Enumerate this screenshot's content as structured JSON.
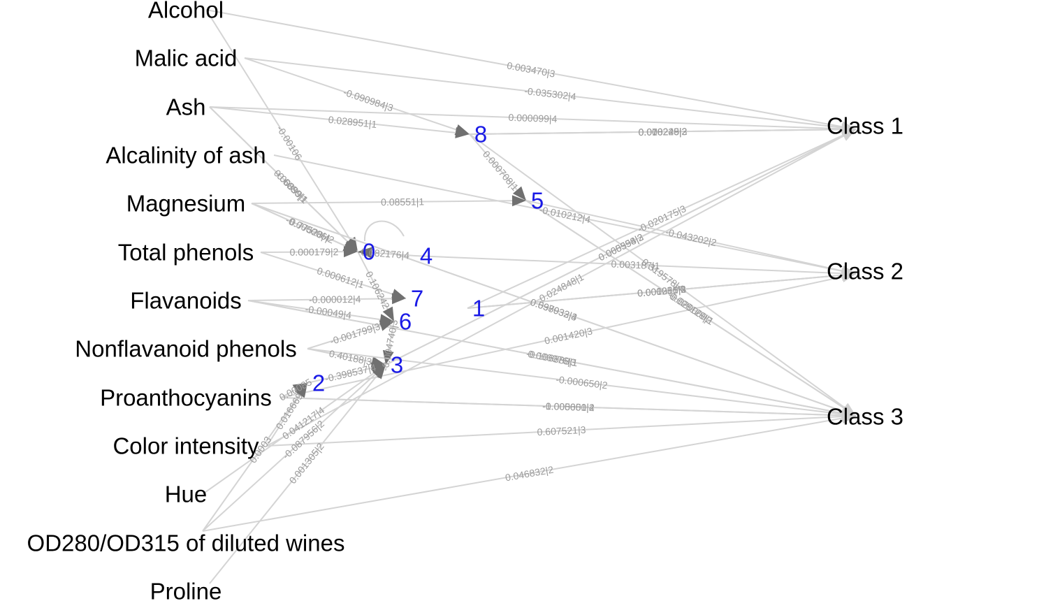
{
  "colors": {
    "hidden_node": "#1a1ae6",
    "edge": "#d4d4d4",
    "edge_label": "#9a9a9a",
    "text": "#000000"
  },
  "features": [
    "Alcohol",
    "Malic acid",
    "Ash",
    "Alcalinity of ash",
    "Magnesium",
    "Total phenols",
    "Flavanoids",
    "Nonflavanoid phenols",
    "Proanthocyanins",
    "Color intensity",
    "Hue",
    "OD280/OD315 of diluted wines",
    "Proline"
  ],
  "hidden_nodes": [
    "0",
    "1",
    "2",
    "3",
    "4",
    "5",
    "6",
    "7",
    "8"
  ],
  "classes": [
    "Class 1",
    "Class 2",
    "Class 3"
  ],
  "edges": [
    {
      "from": "Alcohol",
      "to": "Class 1",
      "label": "0.003470|3"
    },
    {
      "from": "Malic acid",
      "to": "Class 1",
      "label": "-0.035302|4"
    },
    {
      "from": "Malic acid",
      "to": "8",
      "label": "-0.090984|3"
    },
    {
      "from": "Ash",
      "to": "Class 1",
      "label": "0.000099|4"
    },
    {
      "from": "Alcohol",
      "to": "0",
      "label": "-0.00106"
    },
    {
      "from": "Ash",
      "to": "8",
      "label": "0.028951|1"
    },
    {
      "from": "8",
      "to": "Class 1",
      "label": "0.070245|2"
    },
    {
      "from": "8",
      "to": "Class 1",
      "label": "0.000249|3"
    },
    {
      "from": "Alcalinity of ash",
      "to": "Class 2",
      "label": "-0.010212|4"
    },
    {
      "from": "Ash",
      "to": "0",
      "label": "-0.6080|1"
    },
    {
      "from": "Ash",
      "to": "0",
      "label": "0.00899|1"
    },
    {
      "from": "8",
      "to": "Class 1",
      "label": "0.018228|2"
    },
    {
      "from": "8",
      "to": "5",
      "label": "0.000708|1"
    },
    {
      "from": "5",
      "to": "Class 2",
      "label": "-0.043202|2"
    },
    {
      "from": "Magnesium",
      "to": "0",
      "label": "0.77528|4"
    },
    {
      "from": "Magnesium",
      "to": "0",
      "label": "-0.000006|2"
    },
    {
      "from": "Magnesium",
      "to": "5",
      "label": "0.08551|1"
    },
    {
      "from": "5",
      "to": "Class 3",
      "label": "-0.020000|1"
    },
    {
      "from": "5",
      "to": "Class 3",
      "label": "0.028129|2"
    },
    {
      "from": "Magnesium",
      "to": "Class 3",
      "label": "0.037032|3"
    },
    {
      "from": "Total phenols",
      "to": "0",
      "label": "0.000179|2"
    },
    {
      "from": "3",
      "to": "Class 1",
      "label": "0.060394|2"
    },
    {
      "from": "4",
      "to": "0",
      "label": "-0.082176|4"
    },
    {
      "from": "Magnesium",
      "to": "Class 3",
      "label": "0.598933|4"
    },
    {
      "from": "8",
      "to": "Class 3",
      "label": "0.319578|4"
    },
    {
      "from": "4",
      "to": "Class 2",
      "label": "0.003187|1"
    },
    {
      "from": "Total phenols",
      "to": "7",
      "label": "0.000612|1"
    },
    {
      "from": "Flavanoids",
      "to": "7",
      "label": "-0.000012|4"
    },
    {
      "from": "1",
      "to": "Class 2",
      "label": "0.000280|3"
    },
    {
      "from": "1",
      "to": "Class 2",
      "label": "0.000015|4"
    },
    {
      "from": "0",
      "to": "6",
      "label": "0.106242"
    },
    {
      "from": "Flavanoids",
      "to": "6",
      "label": "-0.00049|4"
    },
    {
      "from": "1",
      "to": "Class 1",
      "label": "-0.020175|3"
    },
    {
      "from": "Flavanoids",
      "to": "Class 3",
      "label": "0.000076|3"
    },
    {
      "from": "Flavanoids",
      "to": "Class 3",
      "label": "-0.106888|1"
    },
    {
      "from": "Nonflavanoid phenols",
      "to": "6",
      "label": "-0.001799|3"
    },
    {
      "from": "1",
      "to": "Class 2",
      "label": "0.001251|2"
    },
    {
      "from": "6",
      "to": "3",
      "label": "-0.004740|3"
    },
    {
      "from": "Nonflavanoid phenols",
      "to": "3",
      "label": "0.40188|3"
    },
    {
      "from": "3",
      "to": "Class 1",
      "label": "0.005558|3"
    },
    {
      "from": "Nonflavanoid phenols",
      "to": "Class 3",
      "label": "-0.000650|2"
    },
    {
      "from": "Proanthocyanins",
      "to": "2",
      "label": "0.00085"
    },
    {
      "from": "2",
      "to": "3",
      "label": "-0.398537|4"
    },
    {
      "from": "Proanthocyanins",
      "to": "Class 3",
      "label": "-1.000000|2"
    },
    {
      "from": "Proanthocyanins",
      "to": "Class 2",
      "label": "0.001420|3"
    },
    {
      "from": "Color intensity",
      "to": "2",
      "label": "0.016669"
    },
    {
      "from": "Color intensity",
      "to": "Class 1",
      "label": "0.024848|1"
    },
    {
      "from": "Proanthocyanins",
      "to": "Class 3",
      "label": "-0.005651|4"
    },
    {
      "from": "Hue",
      "to": "3",
      "label": "0.041217|4"
    },
    {
      "from": "Color intensity",
      "to": "Class 3",
      "label": "0.607521|3"
    },
    {
      "from": "OD280/OD315 of diluted wines",
      "to": "3",
      "label": "-0.087956|2"
    },
    {
      "from": "OD280/OD315 of diluted wines",
      "to": "Class 3",
      "label": "0.046832|2"
    },
    {
      "from": "Proline",
      "to": "3",
      "label": "0.001305|2"
    },
    {
      "from": "OD280/OD315 of diluted wines",
      "to": "2",
      "label": "0.0003"
    }
  ]
}
